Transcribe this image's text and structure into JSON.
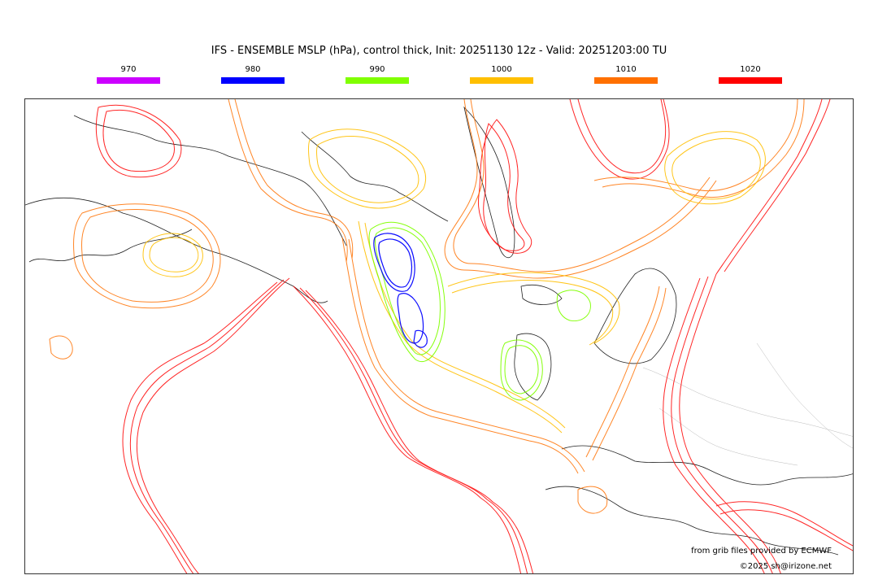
{
  "title": "IFS - ENSEMBLE MSLP (hPa), control thick, Init: 20251130 12z - Valid: 20251203:00 TU",
  "legend": [
    {
      "label": "970",
      "color": "#cc00ff"
    },
    {
      "label": "980",
      "color": "#0000ff"
    },
    {
      "label": "990",
      "color": "#80ff00"
    },
    {
      "label": "1000",
      "color": "#ffbf00"
    },
    {
      "label": "1010",
      "color": "#ff7000"
    },
    {
      "label": "1020",
      "color": "#ff0000"
    }
  ],
  "credits": {
    "source": "from grib files provided by ECMWF",
    "copyright": "©2025 sh@irizone.net"
  }
}
